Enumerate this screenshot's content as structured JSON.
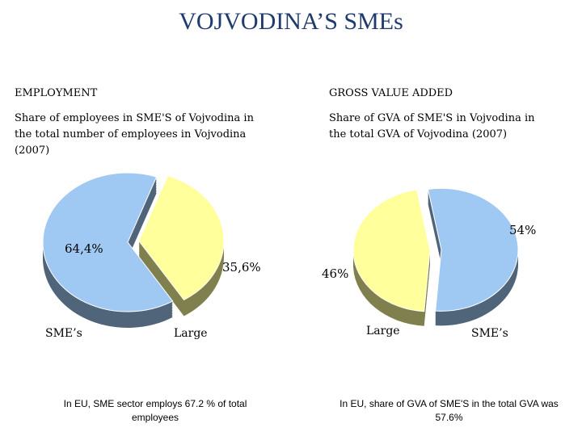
{
  "title": "VOJVODINA’S SMEs",
  "chart_data": [
    {
      "type": "pie",
      "title": "EMPLOYMENT",
      "subtitle": "Share of employees in SME'S of Vojvodina in the total number of employees in Vojvodina (2007)",
      "categories": [
        "SME’s",
        "Large"
      ],
      "values": [
        64.4,
        35.6
      ],
      "value_labels": [
        "64,4%",
        "35,6%"
      ],
      "colors": [
        "#9fc8f3",
        "#ffff9c"
      ],
      "annotation": "In EU, SME sector employs 67.2 % of total employees"
    },
    {
      "type": "pie",
      "title": "GROSS VALUE ADDED",
      "subtitle": "Share of GVA of SME'S in Vojvodina in the total GVA of Vojvodina (2007)",
      "categories": [
        "SME’s",
        "Large"
      ],
      "values": [
        54,
        46
      ],
      "value_labels": [
        "54%",
        "46%"
      ],
      "colors": [
        "#9fc8f3",
        "#ffff9c"
      ],
      "annotation": "In EU, share of GVA of SME'S in the total GVA was 57.6%"
    }
  ]
}
